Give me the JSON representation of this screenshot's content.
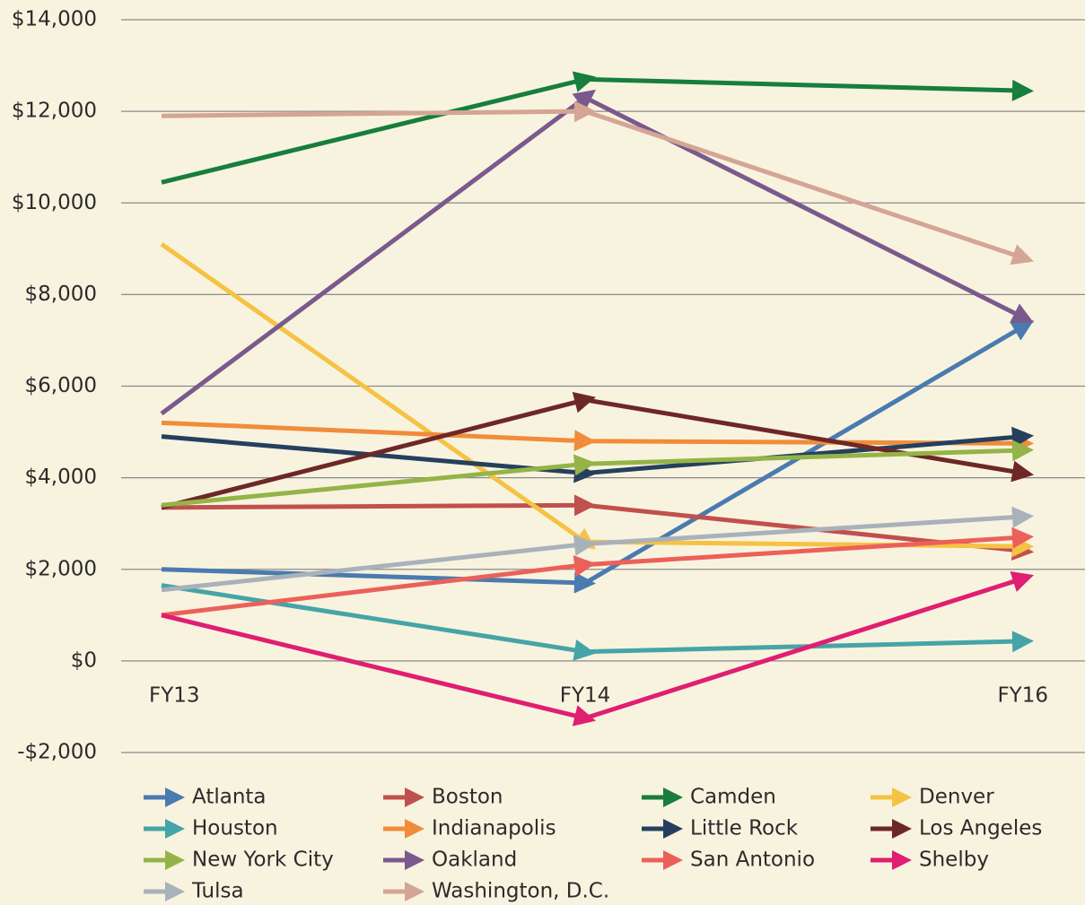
{
  "chart_data": {
    "type": "line",
    "categories": [
      "FY13",
      "FY14",
      "FY16"
    ],
    "ylim": [
      -2000,
      14000
    ],
    "yticks": [
      {
        "value": -2000,
        "label": "-$2,000"
      },
      {
        "value": 0,
        "label": "$0"
      },
      {
        "value": 2000,
        "label": "$2,000"
      },
      {
        "value": 4000,
        "label": "$4,000"
      },
      {
        "value": 6000,
        "label": "$6,000"
      },
      {
        "value": 8000,
        "label": "$8,000"
      },
      {
        "value": 10000,
        "label": "$10,000"
      },
      {
        "value": 12000,
        "label": "$12,000"
      },
      {
        "value": 14000,
        "label": "$14,000"
      }
    ],
    "grid": true,
    "legend": "bottom",
    "series": [
      {
        "name": "Atlanta",
        "color": "#4a7bb0",
        "values": [
          2000,
          1700,
          7300
        ]
      },
      {
        "name": "Boston",
        "color": "#c0504d",
        "values": [
          3350,
          3400,
          2400
        ]
      },
      {
        "name": "Camden",
        "color": "#177e3d",
        "values": [
          10450,
          12700,
          12450
        ]
      },
      {
        "name": "Denver",
        "color": "#f5c243",
        "values": [
          9100,
          2600,
          2500
        ]
      },
      {
        "name": "Houston",
        "color": "#45a4a8",
        "values": [
          1650,
          200,
          430
        ]
      },
      {
        "name": "Indianapolis",
        "color": "#f08c3a",
        "values": [
          5200,
          4800,
          4750
        ]
      },
      {
        "name": "Little Rock",
        "color": "#25405e",
        "values": [
          4900,
          4100,
          4900
        ]
      },
      {
        "name": "Los Angeles",
        "color": "#6e2727",
        "values": [
          3350,
          5700,
          4100
        ]
      },
      {
        "name": "New York City",
        "color": "#94b447",
        "values": [
          3400,
          4300,
          4600
        ]
      },
      {
        "name": "Oakland",
        "color": "#7a5a8c",
        "values": [
          5400,
          12300,
          7500
        ]
      },
      {
        "name": "San Antonio",
        "color": "#ec605a",
        "values": [
          1000,
          2100,
          2700
        ]
      },
      {
        "name": "Shelby",
        "color": "#e01e72",
        "values": [
          1000,
          -1250,
          1800
        ]
      },
      {
        "name": "Tulsa",
        "color": "#a9b1bb",
        "values": [
          1550,
          2550,
          3150
        ]
      },
      {
        "name": "Washington, D.C.",
        "color": "#d4a594",
        "values": [
          11900,
          12000,
          8800
        ]
      }
    ]
  }
}
